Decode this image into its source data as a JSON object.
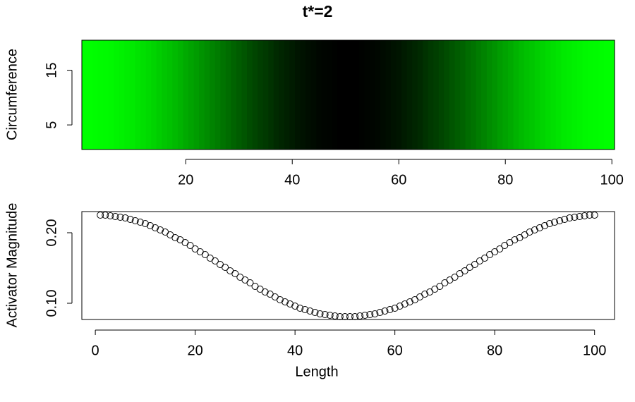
{
  "chart_data": [
    {
      "type": "heatmap",
      "title": "t*=2",
      "ylabel": "Circumference",
      "x": [
        1,
        2,
        3,
        4,
        5,
        6,
        7,
        8,
        9,
        10,
        11,
        12,
        13,
        14,
        15,
        16,
        17,
        18,
        19,
        20,
        21,
        22,
        23,
        24,
        25,
        26,
        27,
        28,
        29,
        30,
        31,
        32,
        33,
        34,
        35,
        36,
        37,
        38,
        39,
        40,
        41,
        42,
        43,
        44,
        45,
        46,
        47,
        48,
        49,
        50,
        51,
        52,
        53,
        54,
        55,
        56,
        57,
        58,
        59,
        60,
        61,
        62,
        63,
        64,
        65,
        66,
        67,
        68,
        69,
        70,
        71,
        72,
        73,
        74,
        75,
        76,
        77,
        78,
        79,
        80,
        81,
        82,
        83,
        84,
        85,
        86,
        87,
        88,
        89,
        90,
        91,
        92,
        93,
        94,
        95,
        96,
        97,
        98,
        99,
        100
      ],
      "values": [
        0.225,
        0.225,
        0.224,
        0.223,
        0.222,
        0.221,
        0.219,
        0.217,
        0.215,
        0.213,
        0.21,
        0.207,
        0.204,
        0.201,
        0.197,
        0.193,
        0.19,
        0.186,
        0.182,
        0.177,
        0.173,
        0.169,
        0.164,
        0.16,
        0.155,
        0.151,
        0.146,
        0.142,
        0.137,
        0.133,
        0.129,
        0.124,
        0.12,
        0.116,
        0.113,
        0.109,
        0.105,
        0.102,
        0.099,
        0.096,
        0.093,
        0.091,
        0.089,
        0.087,
        0.085,
        0.084,
        0.083,
        0.082,
        0.081,
        0.081,
        0.081,
        0.081,
        0.082,
        0.083,
        0.084,
        0.085,
        0.087,
        0.089,
        0.091,
        0.093,
        0.096,
        0.099,
        0.102,
        0.105,
        0.109,
        0.113,
        0.116,
        0.12,
        0.124,
        0.129,
        0.133,
        0.137,
        0.142,
        0.146,
        0.151,
        0.155,
        0.16,
        0.164,
        0.169,
        0.173,
        0.177,
        0.182,
        0.186,
        0.19,
        0.193,
        0.197,
        0.201,
        0.204,
        0.207,
        0.21,
        0.213,
        0.215,
        0.217,
        0.219,
        0.221,
        0.222,
        0.223,
        0.224,
        0.225,
        0.225
      ],
      "colorscale": [
        "#000000",
        "#00ff00"
      ],
      "xlim": [
        0.5,
        100.5
      ],
      "xticks": [
        20,
        40,
        60,
        80,
        100
      ],
      "ylim": [
        0.5,
        20.5
      ],
      "yticks": [
        5,
        15
      ]
    },
    {
      "type": "scatter",
      "xlabel": "Length",
      "ylabel": "Activator Magnitude",
      "color": "#000000",
      "x": [
        1,
        2,
        3,
        4,
        5,
        6,
        7,
        8,
        9,
        10,
        11,
        12,
        13,
        14,
        15,
        16,
        17,
        18,
        19,
        20,
        21,
        22,
        23,
        24,
        25,
        26,
        27,
        28,
        29,
        30,
        31,
        32,
        33,
        34,
        35,
        36,
        37,
        38,
        39,
        40,
        41,
        42,
        43,
        44,
        45,
        46,
        47,
        48,
        49,
        50,
        51,
        52,
        53,
        54,
        55,
        56,
        57,
        58,
        59,
        60,
        61,
        62,
        63,
        64,
        65,
        66,
        67,
        68,
        69,
        70,
        71,
        72,
        73,
        74,
        75,
        76,
        77,
        78,
        79,
        80,
        81,
        82,
        83,
        84,
        85,
        86,
        87,
        88,
        89,
        90,
        91,
        92,
        93,
        94,
        95,
        96,
        97,
        98,
        99,
        100
      ],
      "values": [
        0.225,
        0.225,
        0.224,
        0.223,
        0.222,
        0.221,
        0.219,
        0.217,
        0.215,
        0.213,
        0.21,
        0.207,
        0.204,
        0.201,
        0.197,
        0.193,
        0.19,
        0.186,
        0.182,
        0.177,
        0.173,
        0.169,
        0.164,
        0.16,
        0.155,
        0.151,
        0.146,
        0.142,
        0.137,
        0.133,
        0.129,
        0.124,
        0.12,
        0.116,
        0.113,
        0.109,
        0.105,
        0.102,
        0.099,
        0.096,
        0.093,
        0.091,
        0.089,
        0.087,
        0.085,
        0.084,
        0.083,
        0.082,
        0.081,
        0.081,
        0.081,
        0.081,
        0.082,
        0.083,
        0.084,
        0.085,
        0.087,
        0.089,
        0.091,
        0.093,
        0.096,
        0.099,
        0.102,
        0.105,
        0.109,
        0.113,
        0.116,
        0.12,
        0.124,
        0.129,
        0.133,
        0.137,
        0.142,
        0.146,
        0.151,
        0.155,
        0.16,
        0.164,
        0.169,
        0.173,
        0.177,
        0.182,
        0.186,
        0.19,
        0.193,
        0.197,
        0.201,
        0.204,
        0.207,
        0.21,
        0.213,
        0.215,
        0.217,
        0.219,
        0.221,
        0.222,
        0.223,
        0.224,
        0.225,
        0.225
      ],
      "xlim": [
        -2.7,
        104
      ],
      "xticks": [
        0,
        20,
        40,
        60,
        80,
        100
      ],
      "ylim": [
        0.077,
        0.23
      ],
      "yticks": [
        {
          "value": 0.1,
          "label": "0.10"
        },
        {
          "value": 0.2,
          "label": "0.20"
        }
      ]
    }
  ]
}
